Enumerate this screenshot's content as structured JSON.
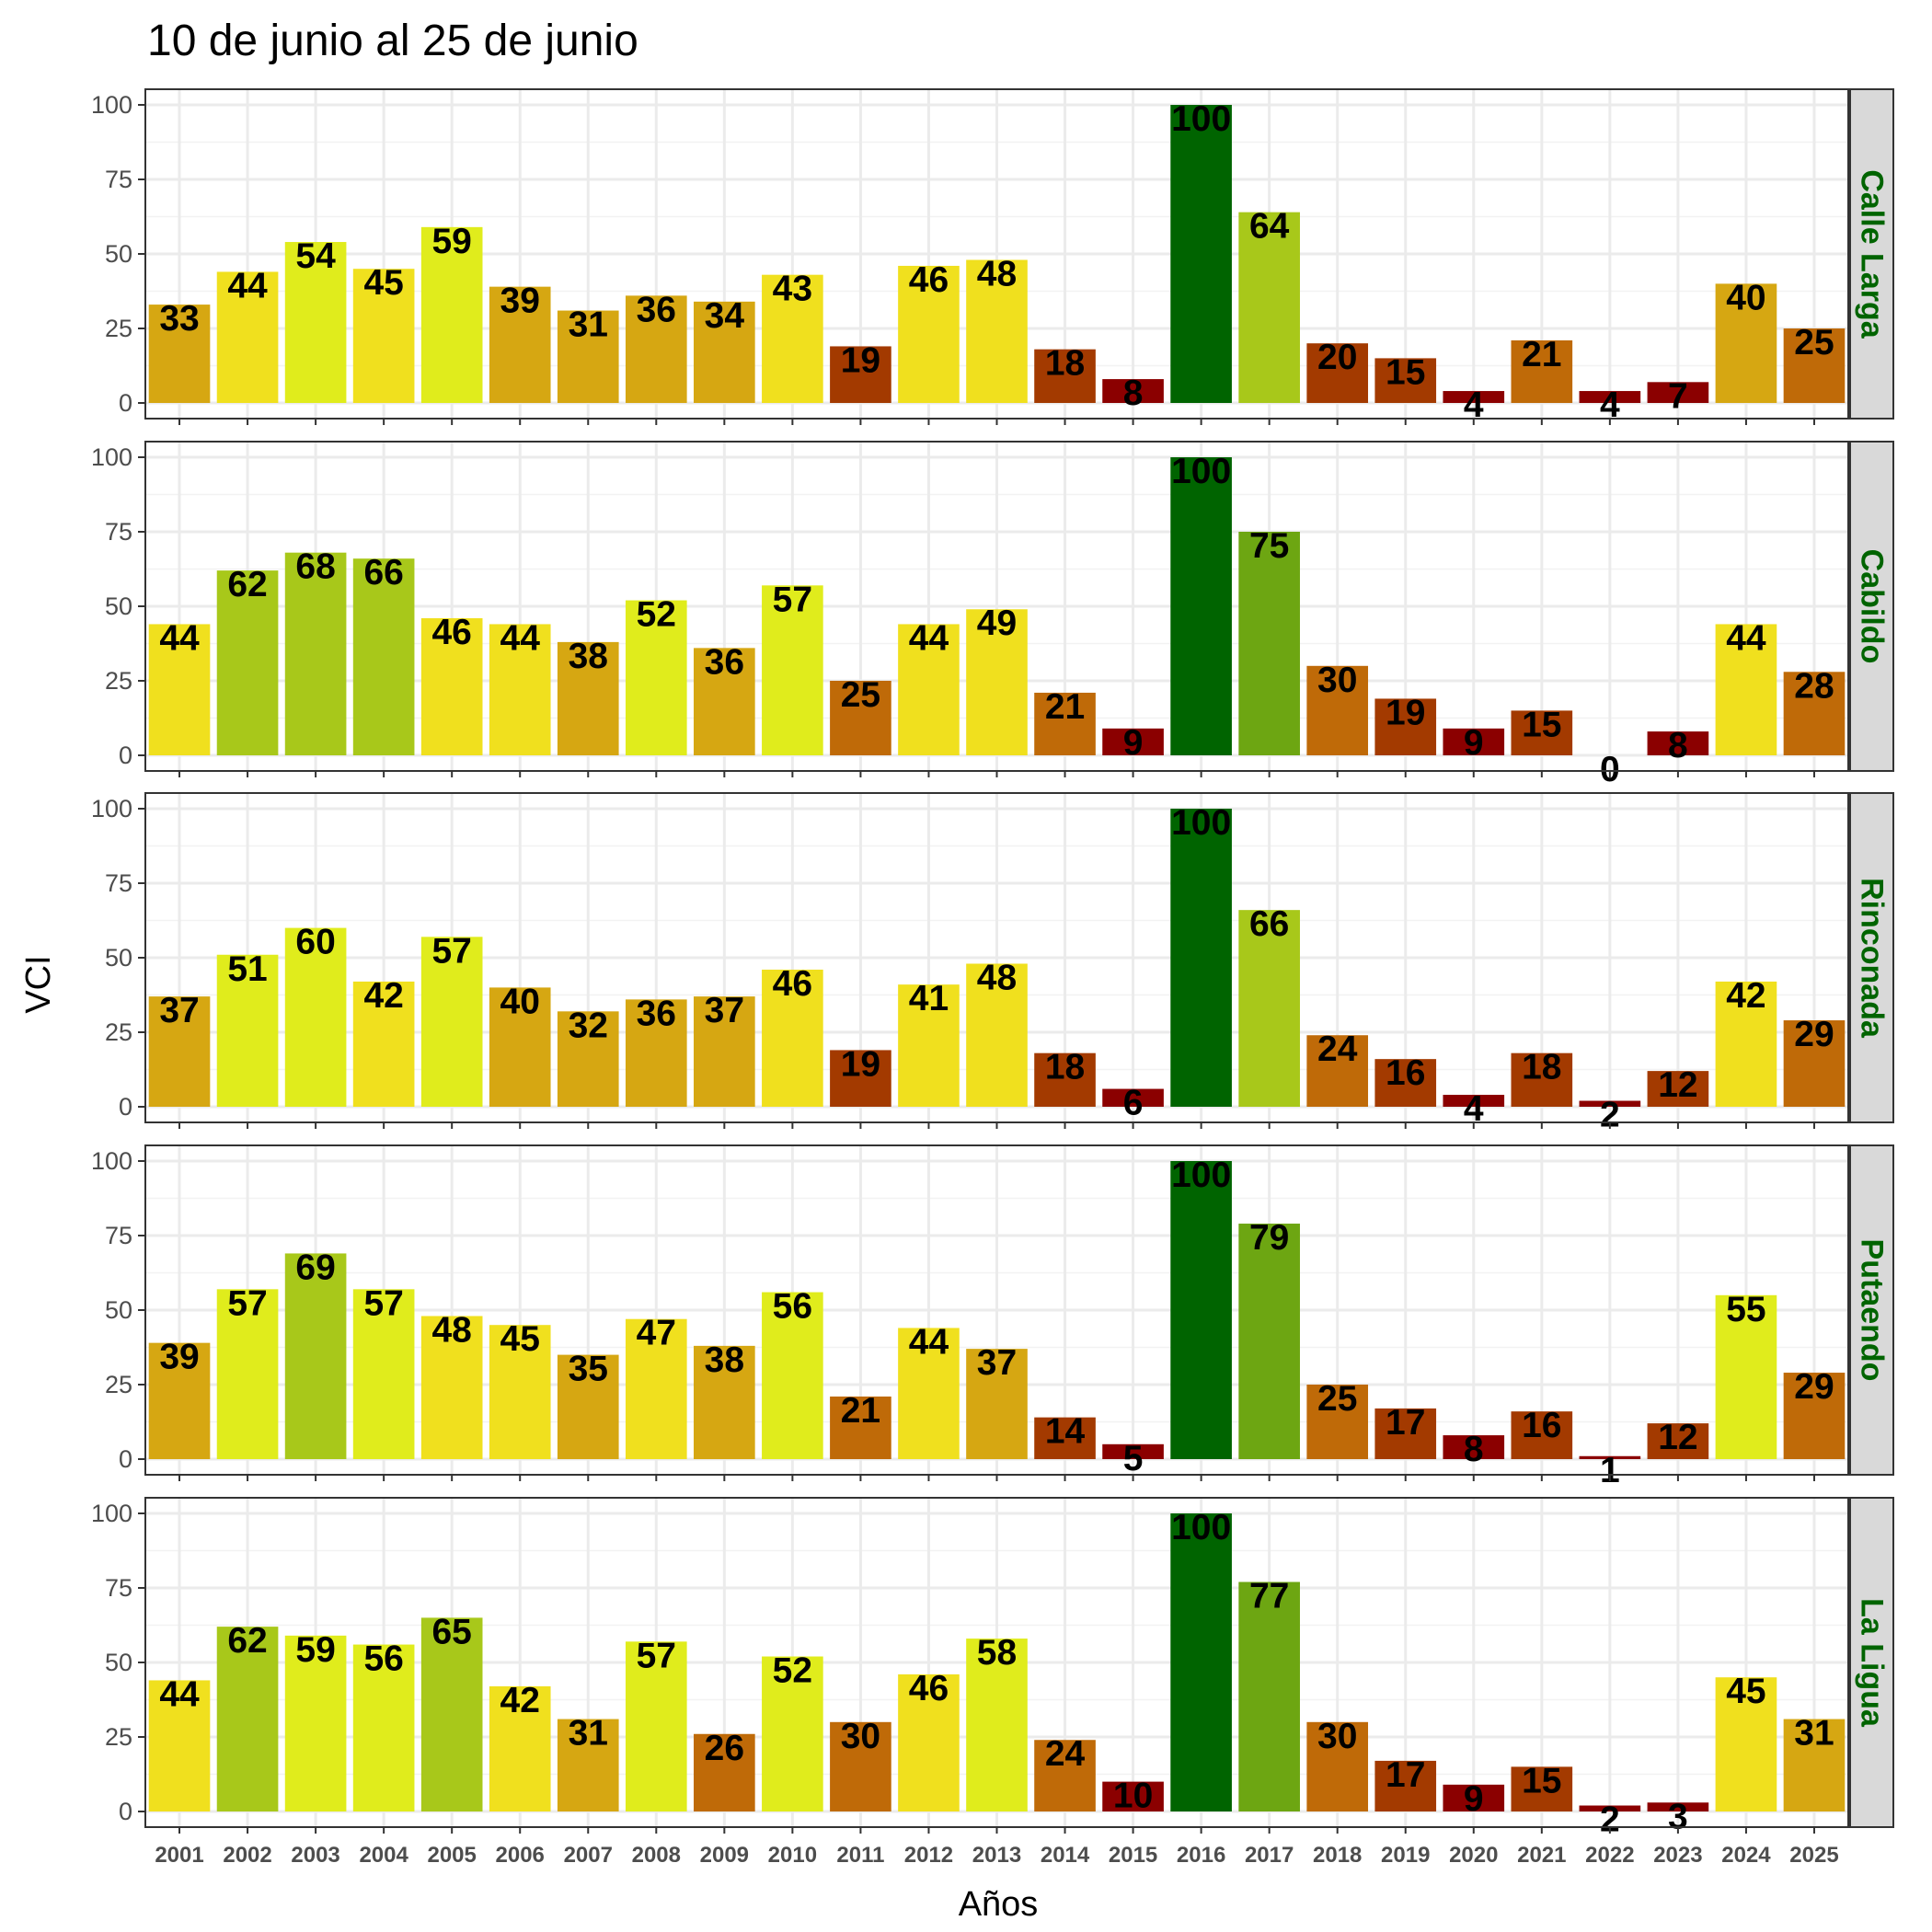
{
  "chart_data": {
    "type": "bar",
    "title": "10 de junio al 25 de junio",
    "xlabel": "Años",
    "ylabel": "VCI",
    "ylim": [
      0,
      100
    ],
    "yticks": [
      0,
      25,
      50,
      75,
      100
    ],
    "categories": [
      "2001",
      "2002",
      "2003",
      "2004",
      "2005",
      "2006",
      "2007",
      "2008",
      "2009",
      "2010",
      "2011",
      "2012",
      "2013",
      "2014",
      "2015",
      "2016",
      "2017",
      "2018",
      "2019",
      "2020",
      "2021",
      "2022",
      "2023",
      "2024",
      "2025"
    ],
    "facet_label_color": "#006400",
    "color_scale": [
      {
        "max": 10,
        "color": "#8B0000"
      },
      {
        "max": 20,
        "color": "#A33A00"
      },
      {
        "max": 30,
        "color": "#BF6A08"
      },
      {
        "max": 40,
        "color": "#D6A712"
      },
      {
        "max": 50,
        "color": "#F0E01E"
      },
      {
        "max": 60,
        "color": "#E0EC1C"
      },
      {
        "max": 70,
        "color": "#A8C81A"
      },
      {
        "max": 80,
        "color": "#6DA612"
      },
      {
        "max": 100,
        "color": "#006400"
      }
    ],
    "series": [
      {
        "name": "Calle Larga",
        "values": [
          33,
          44,
          54,
          45,
          59,
          39,
          31,
          36,
          34,
          43,
          19,
          46,
          48,
          18,
          8,
          100,
          64,
          20,
          15,
          4,
          21,
          4,
          7,
          40,
          25
        ]
      },
      {
        "name": "Cabildo",
        "values": [
          44,
          62,
          68,
          66,
          46,
          44,
          38,
          52,
          36,
          57,
          25,
          44,
          49,
          21,
          9,
          100,
          75,
          30,
          19,
          9,
          15,
          0,
          8,
          44,
          28
        ]
      },
      {
        "name": "Rinconada",
        "values": [
          37,
          51,
          60,
          42,
          57,
          40,
          32,
          36,
          37,
          46,
          19,
          41,
          48,
          18,
          6,
          100,
          66,
          24,
          16,
          4,
          18,
          2,
          12,
          42,
          29
        ]
      },
      {
        "name": "Putaendo",
        "values": [
          39,
          57,
          69,
          57,
          48,
          45,
          35,
          47,
          38,
          56,
          21,
          44,
          37,
          14,
          5,
          100,
          79,
          25,
          17,
          8,
          16,
          1,
          12,
          55,
          29
        ]
      },
      {
        "name": "La Ligua",
        "values": [
          44,
          62,
          59,
          56,
          65,
          42,
          31,
          57,
          26,
          52,
          30,
          46,
          58,
          24,
          10,
          100,
          77,
          30,
          17,
          9,
          15,
          2,
          3,
          45,
          31
        ]
      }
    ]
  }
}
